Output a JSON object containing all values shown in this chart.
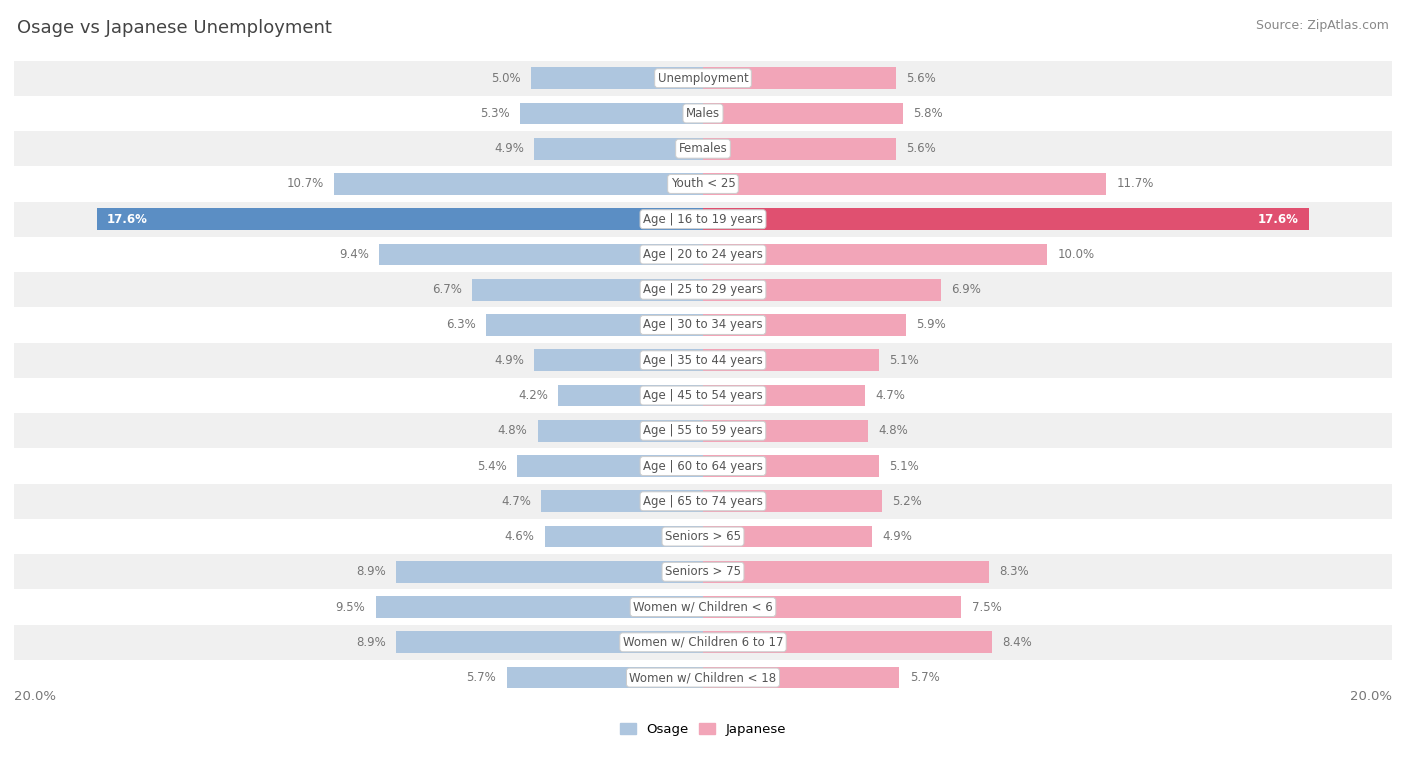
{
  "title": "Osage vs Japanese Unemployment",
  "source": "Source: ZipAtlas.com",
  "categories": [
    "Unemployment",
    "Males",
    "Females",
    "Youth < 25",
    "Age | 16 to 19 years",
    "Age | 20 to 24 years",
    "Age | 25 to 29 years",
    "Age | 30 to 34 years",
    "Age | 35 to 44 years",
    "Age | 45 to 54 years",
    "Age | 55 to 59 years",
    "Age | 60 to 64 years",
    "Age | 65 to 74 years",
    "Seniors > 65",
    "Seniors > 75",
    "Women w/ Children < 6",
    "Women w/ Children 6 to 17",
    "Women w/ Children < 18"
  ],
  "osage": [
    5.0,
    5.3,
    4.9,
    10.7,
    17.6,
    9.4,
    6.7,
    6.3,
    4.9,
    4.2,
    4.8,
    5.4,
    4.7,
    4.6,
    8.9,
    9.5,
    8.9,
    5.7
  ],
  "japanese": [
    5.6,
    5.8,
    5.6,
    11.7,
    17.6,
    10.0,
    6.9,
    5.9,
    5.1,
    4.7,
    4.8,
    5.1,
    5.2,
    4.9,
    8.3,
    7.5,
    8.4,
    5.7
  ],
  "osage_color": "#aec6df",
  "japanese_color": "#f2a5b8",
  "osage_highlight_color": "#5b8ec4",
  "japanese_highlight_color": "#e05070",
  "label_text_color": "#777777",
  "highlight_label_color": "#ffffff",
  "bg_stripe_color": "#f0f0f0",
  "bg_white_color": "#ffffff",
  "center_label_color": "#555555",
  "bar_height": 0.62,
  "max_val": 20.0,
  "legend_osage": "Osage",
  "legend_japanese": "Japanese",
  "title_fontsize": 13,
  "source_fontsize": 9,
  "label_fontsize": 8.5,
  "category_fontsize": 8.5
}
